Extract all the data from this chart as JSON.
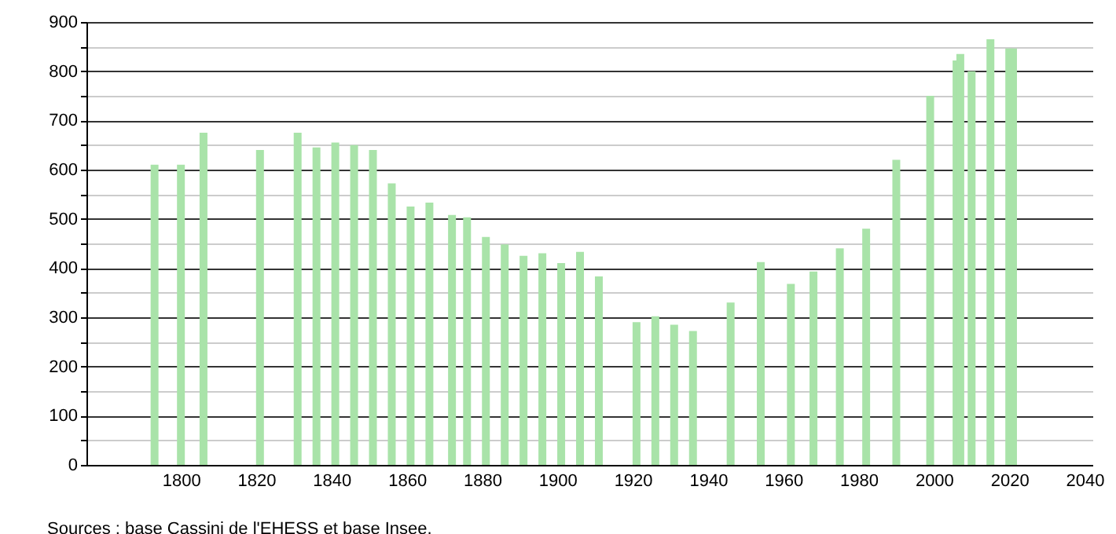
{
  "chart_data": {
    "type": "bar",
    "x": [
      1793,
      1800,
      1806,
      1821,
      1831,
      1836,
      1841,
      1846,
      1851,
      1856,
      1861,
      1866,
      1872,
      1876,
      1881,
      1886,
      1891,
      1896,
      1901,
      1906,
      1911,
      1921,
      1926,
      1931,
      1936,
      1946,
      1954,
      1962,
      1968,
      1975,
      1982,
      1990,
      1999,
      2006,
      2007,
      2010,
      2015,
      2020,
      2021
    ],
    "values": [
      610,
      610,
      675,
      640,
      675,
      645,
      655,
      650,
      640,
      572,
      525,
      533,
      508,
      503,
      463,
      448,
      425,
      430,
      410,
      433,
      383,
      290,
      302,
      285,
      272,
      330,
      412,
      368,
      393,
      440,
      480,
      620,
      750,
      822,
      835,
      800,
      865,
      846,
      846
    ],
    "color": "#a9e3a9",
    "xlim": [
      1777,
      2040
    ],
    "xticks": [
      1800,
      1820,
      1840,
      1860,
      1880,
      1900,
      1920,
      1940,
      1960,
      1980,
      2000,
      2020,
      2040
    ],
    "ylim": [
      0,
      900
    ],
    "yticks": [
      0,
      {
        "value": 50,
        "label": null
      },
      100,
      {
        "value": 150,
        "label": null
      },
      200,
      {
        "value": 250,
        "label": null
      },
      300,
      {
        "value": 350,
        "label": null
      },
      400,
      {
        "value": 450,
        "label": null
      },
      500,
      {
        "value": 550,
        "label": null
      },
      600,
      {
        "value": 650,
        "label": null
      },
      700,
      {
        "value": 750,
        "label": null
      },
      800,
      {
        "value": 850,
        "label": null
      },
      900
    ],
    "grid": "y",
    "annotations": [
      "Sources : base Cassini de l'EHESS et base Insee."
    ]
  }
}
